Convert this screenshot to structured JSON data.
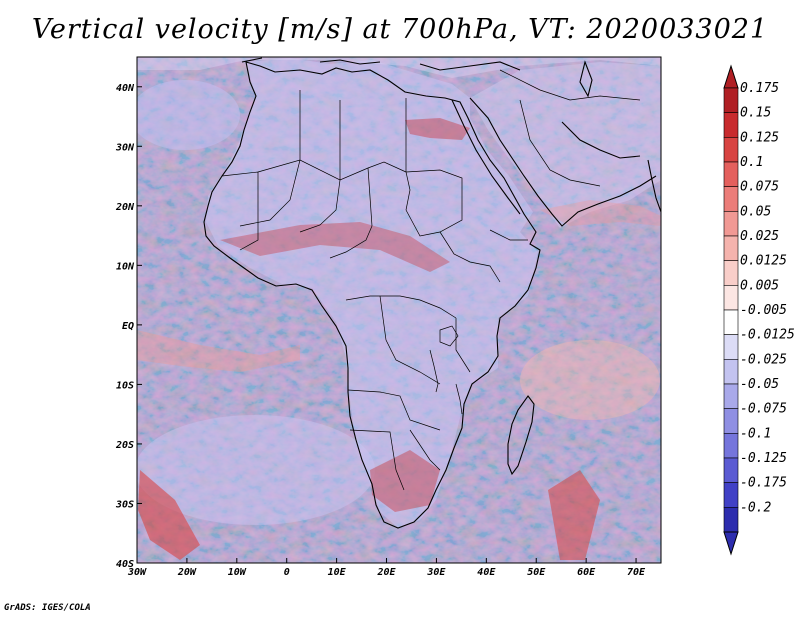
{
  "title": "Vertical velocity [m/s] at 700hPa, VT: 2020033021",
  "credit": "GrADS: IGES/COLA",
  "map": {
    "region": "Africa and surrounding oceans",
    "field": "vertical velocity at 700hPa",
    "longitude_labels": [
      "30W",
      "20W",
      "10W",
      "0",
      "10E",
      "20E",
      "30E",
      "40E",
      "50E",
      "60E",
      "70E"
    ],
    "latitude_labels": [
      "40N",
      "30N",
      "20N",
      "10N",
      "EQ",
      "10S",
      "20S",
      "30S",
      "40S"
    ],
    "longitude_range": [
      -30,
      75
    ],
    "latitude_range": [
      -40,
      45
    ]
  },
  "colorbar": {
    "labels": [
      "0.175",
      "0.15",
      "0.125",
      "0.1",
      "0.075",
      "0.05",
      "0.025",
      "0.0125",
      "0.005",
      "-0.005",
      "-0.0125",
      "-0.025",
      "-0.05",
      "-0.075",
      "-0.1",
      "-0.125",
      "-0.175",
      "-0.2"
    ],
    "colors": [
      "#b01f24",
      "#c82b2e",
      "#d84442",
      "#e4605d",
      "#ec7d79",
      "#f19994",
      "#f5b3ad",
      "#f9cec9",
      "#fce6e3",
      "#ffffff",
      "#dcdcf6",
      "#c3c3f0",
      "#a9a9ea",
      "#8f8fe3",
      "#7575dc",
      "#5b5bd3",
      "#4141c6",
      "#2d2dae"
    ]
  },
  "colors": {
    "coast": "#000000",
    "ocean_base": "#ece9fb",
    "land_base": "#dfdcf8"
  }
}
